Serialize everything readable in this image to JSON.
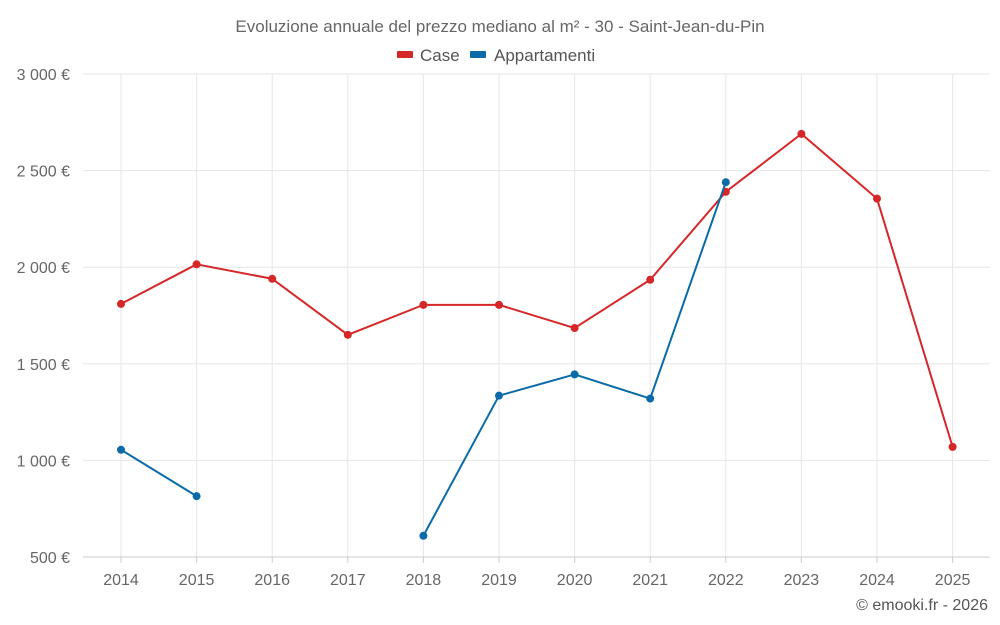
{
  "chart_data": {
    "type": "line",
    "title": "Evoluzione annuale del prezzo mediano al m² - 30 - Saint-Jean-du-Pin",
    "x": [
      2014,
      2015,
      2016,
      2017,
      2018,
      2019,
      2020,
      2021,
      2022,
      2023,
      2024,
      2025
    ],
    "x_tick_labels": [
      "2014",
      "2015",
      "2016",
      "2017",
      "2018",
      "2019",
      "2020",
      "2021",
      "2022",
      "2023",
      "2024",
      "2025"
    ],
    "ylim": [
      500,
      3000
    ],
    "y_ticks": [
      500,
      1000,
      1500,
      2000,
      2500,
      3000
    ],
    "y_tick_labels": [
      "500 €",
      "1 000 €",
      "1 500 €",
      "2 000 €",
      "2 500 €",
      "3 000 €"
    ],
    "xlabel": "",
    "ylabel": "",
    "grid": true,
    "legend_position": "top-center",
    "series": [
      {
        "name": "Case",
        "color": "#d62728",
        "values": [
          1810,
          2015,
          1940,
          1650,
          1805,
          1805,
          1685,
          1935,
          2390,
          2690,
          2355,
          1070
        ]
      },
      {
        "name": "Appartamenti",
        "color": "#0b6ba8",
        "values": [
          1055,
          815,
          null,
          null,
          610,
          1335,
          1445,
          1320,
          2440,
          null,
          null,
          null
        ]
      }
    ],
    "credit": "© emooki.fr - 2026"
  }
}
